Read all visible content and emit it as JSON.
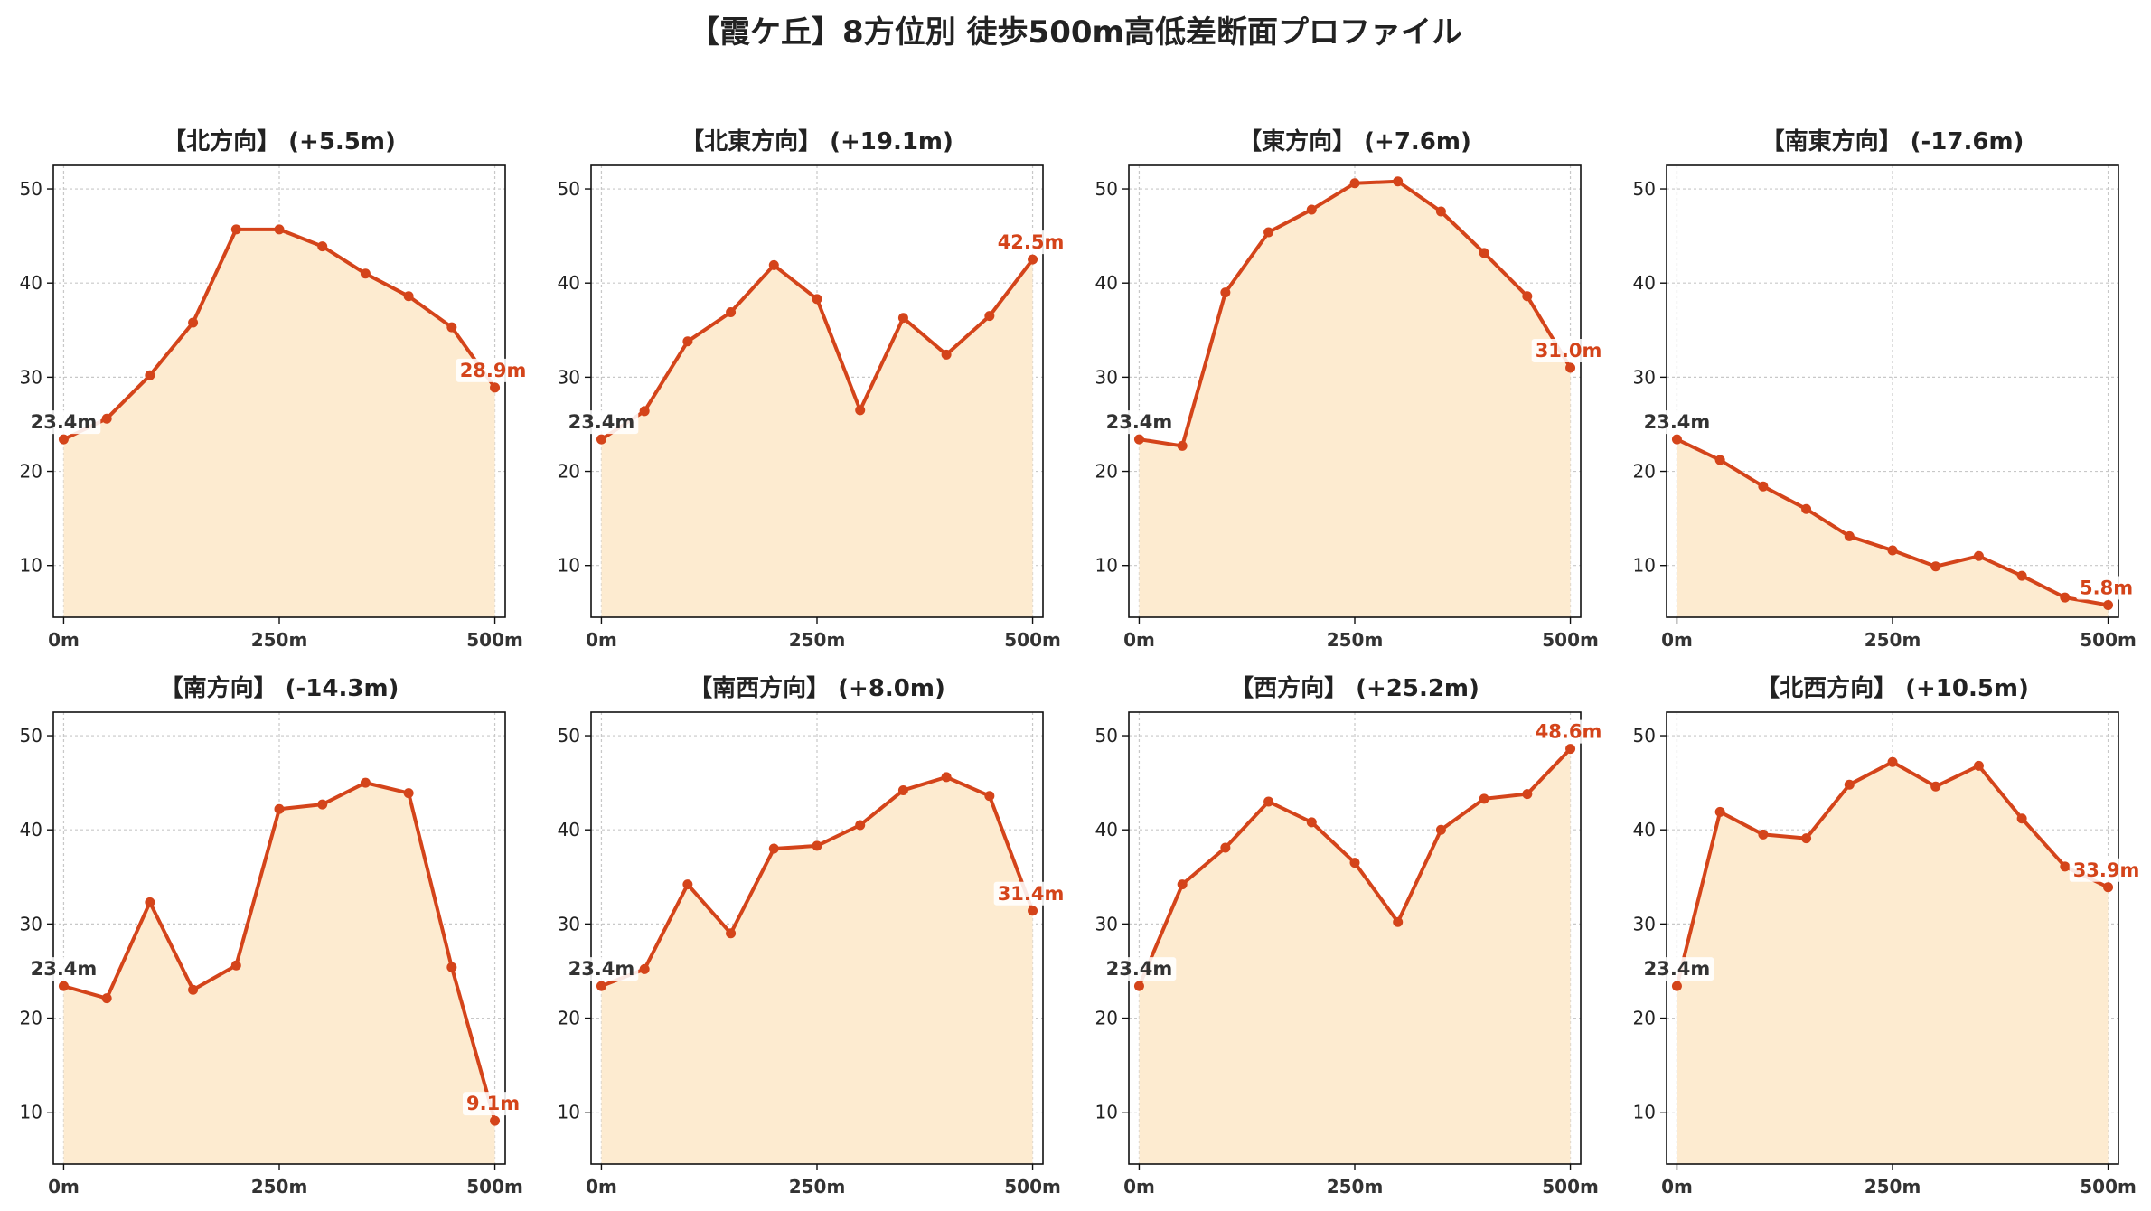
{
  "title": "【霞ケ丘】8方位別 徒歩500m高低差断面プロファイル",
  "colors": {
    "line": "#d4441a",
    "fill": "#fdebd0",
    "start_label": "#333333",
    "end_label": "#d4441a",
    "grid": "#c8c8c8"
  },
  "chart_data": [
    {
      "type": "area",
      "title": "【北方向】 (+5.5m)",
      "x": [
        0,
        50,
        100,
        150,
        200,
        250,
        300,
        350,
        400,
        450,
        500
      ],
      "values": [
        23.4,
        25.6,
        30.2,
        35.8,
        45.7,
        45.7,
        43.9,
        41.0,
        38.6,
        35.3,
        28.9
      ],
      "start_label": "23.4m",
      "end_label": "28.9m",
      "xticks": [
        {
          "value": 0,
          "label": "0m"
        },
        {
          "value": 250,
          "label": "250m"
        },
        {
          "value": 500,
          "label": "500m"
        }
      ],
      "yticks": [
        10,
        20,
        30,
        40,
        50
      ],
      "xlim": [
        -12,
        512
      ],
      "ylim": [
        4.5,
        52.5
      ],
      "grid": true
    },
    {
      "type": "area",
      "title": "【北東方向】 (+19.1m)",
      "x": [
        0,
        50,
        100,
        150,
        200,
        250,
        300,
        350,
        400,
        450,
        500
      ],
      "values": [
        23.4,
        26.4,
        33.8,
        36.9,
        41.9,
        38.3,
        26.5,
        36.3,
        32.4,
        36.5,
        42.5
      ],
      "start_label": "23.4m",
      "end_label": "42.5m",
      "xticks": [
        {
          "value": 0,
          "label": "0m"
        },
        {
          "value": 250,
          "label": "250m"
        },
        {
          "value": 500,
          "label": "500m"
        }
      ],
      "yticks": [
        10,
        20,
        30,
        40,
        50
      ],
      "xlim": [
        -12,
        512
      ],
      "ylim": [
        4.5,
        52.5
      ],
      "grid": true
    },
    {
      "type": "area",
      "title": "【東方向】 (+7.6m)",
      "x": [
        0,
        50,
        100,
        150,
        200,
        250,
        300,
        350,
        400,
        450,
        500
      ],
      "values": [
        23.4,
        22.7,
        39.0,
        45.4,
        47.8,
        50.6,
        50.8,
        47.6,
        43.2,
        38.6,
        31.0
      ],
      "start_label": "23.4m",
      "end_label": "31.0m",
      "xticks": [
        {
          "value": 0,
          "label": "0m"
        },
        {
          "value": 250,
          "label": "250m"
        },
        {
          "value": 500,
          "label": "500m"
        }
      ],
      "yticks": [
        10,
        20,
        30,
        40,
        50
      ],
      "xlim": [
        -12,
        512
      ],
      "ylim": [
        4.5,
        52.5
      ],
      "grid": true
    },
    {
      "type": "area",
      "title": "【南東方向】 (-17.6m)",
      "x": [
        0,
        50,
        100,
        150,
        200,
        250,
        300,
        350,
        400,
        450,
        500
      ],
      "values": [
        23.4,
        21.2,
        18.4,
        16.0,
        13.1,
        11.6,
        9.9,
        11.0,
        8.9,
        6.6,
        5.8
      ],
      "start_label": "23.4m",
      "end_label": "5.8m",
      "xticks": [
        {
          "value": 0,
          "label": "0m"
        },
        {
          "value": 250,
          "label": "250m"
        },
        {
          "value": 500,
          "label": "500m"
        }
      ],
      "yticks": [
        10,
        20,
        30,
        40,
        50
      ],
      "xlim": [
        -12,
        512
      ],
      "ylim": [
        4.5,
        52.5
      ],
      "grid": true
    },
    {
      "type": "area",
      "title": "【南方向】 (-14.3m)",
      "x": [
        0,
        50,
        100,
        150,
        200,
        250,
        300,
        350,
        400,
        450,
        500
      ],
      "values": [
        23.4,
        22.1,
        32.3,
        23.0,
        25.6,
        42.2,
        42.7,
        45.0,
        43.9,
        25.4,
        9.1
      ],
      "start_label": "23.4m",
      "end_label": "9.1m",
      "xticks": [
        {
          "value": 0,
          "label": "0m"
        },
        {
          "value": 250,
          "label": "250m"
        },
        {
          "value": 500,
          "label": "500m"
        }
      ],
      "yticks": [
        10,
        20,
        30,
        40,
        50
      ],
      "xlim": [
        -12,
        512
      ],
      "ylim": [
        4.5,
        52.5
      ],
      "grid": true
    },
    {
      "type": "area",
      "title": "【南西方向】 (+8.0m)",
      "x": [
        0,
        50,
        100,
        150,
        200,
        250,
        300,
        350,
        400,
        450,
        500
      ],
      "values": [
        23.4,
        25.2,
        34.2,
        29.0,
        38.0,
        38.3,
        40.5,
        44.2,
        45.6,
        43.6,
        31.4
      ],
      "start_label": "23.4m",
      "end_label": "31.4m",
      "xticks": [
        {
          "value": 0,
          "label": "0m"
        },
        {
          "value": 250,
          "label": "250m"
        },
        {
          "value": 500,
          "label": "500m"
        }
      ],
      "yticks": [
        10,
        20,
        30,
        40,
        50
      ],
      "xlim": [
        -12,
        512
      ],
      "ylim": [
        4.5,
        52.5
      ],
      "grid": true
    },
    {
      "type": "area",
      "title": "【西方向】 (+25.2m)",
      "x": [
        0,
        50,
        100,
        150,
        200,
        250,
        300,
        350,
        400,
        450,
        500
      ],
      "values": [
        23.4,
        34.2,
        38.1,
        43.0,
        40.8,
        36.5,
        30.2,
        40.0,
        43.3,
        43.8,
        48.6
      ],
      "start_label": "23.4m",
      "end_label": "48.6m",
      "xticks": [
        {
          "value": 0,
          "label": "0m"
        },
        {
          "value": 250,
          "label": "250m"
        },
        {
          "value": 500,
          "label": "500m"
        }
      ],
      "yticks": [
        10,
        20,
        30,
        40,
        50
      ],
      "xlim": [
        -12,
        512
      ],
      "ylim": [
        4.5,
        52.5
      ],
      "grid": true
    },
    {
      "type": "area",
      "title": "【北西方向】 (+10.5m)",
      "x": [
        0,
        50,
        100,
        150,
        200,
        250,
        300,
        350,
        400,
        450,
        500
      ],
      "values": [
        23.4,
        41.9,
        39.5,
        39.1,
        44.8,
        47.2,
        44.6,
        46.8,
        41.2,
        36.1,
        33.9
      ],
      "start_label": "23.4m",
      "end_label": "33.9m",
      "xticks": [
        {
          "value": 0,
          "label": "0m"
        },
        {
          "value": 250,
          "label": "250m"
        },
        {
          "value": 500,
          "label": "500m"
        }
      ],
      "yticks": [
        10,
        20,
        30,
        40,
        50
      ],
      "xlim": [
        -12,
        512
      ],
      "ylim": [
        4.5,
        52.5
      ],
      "grid": true
    }
  ]
}
